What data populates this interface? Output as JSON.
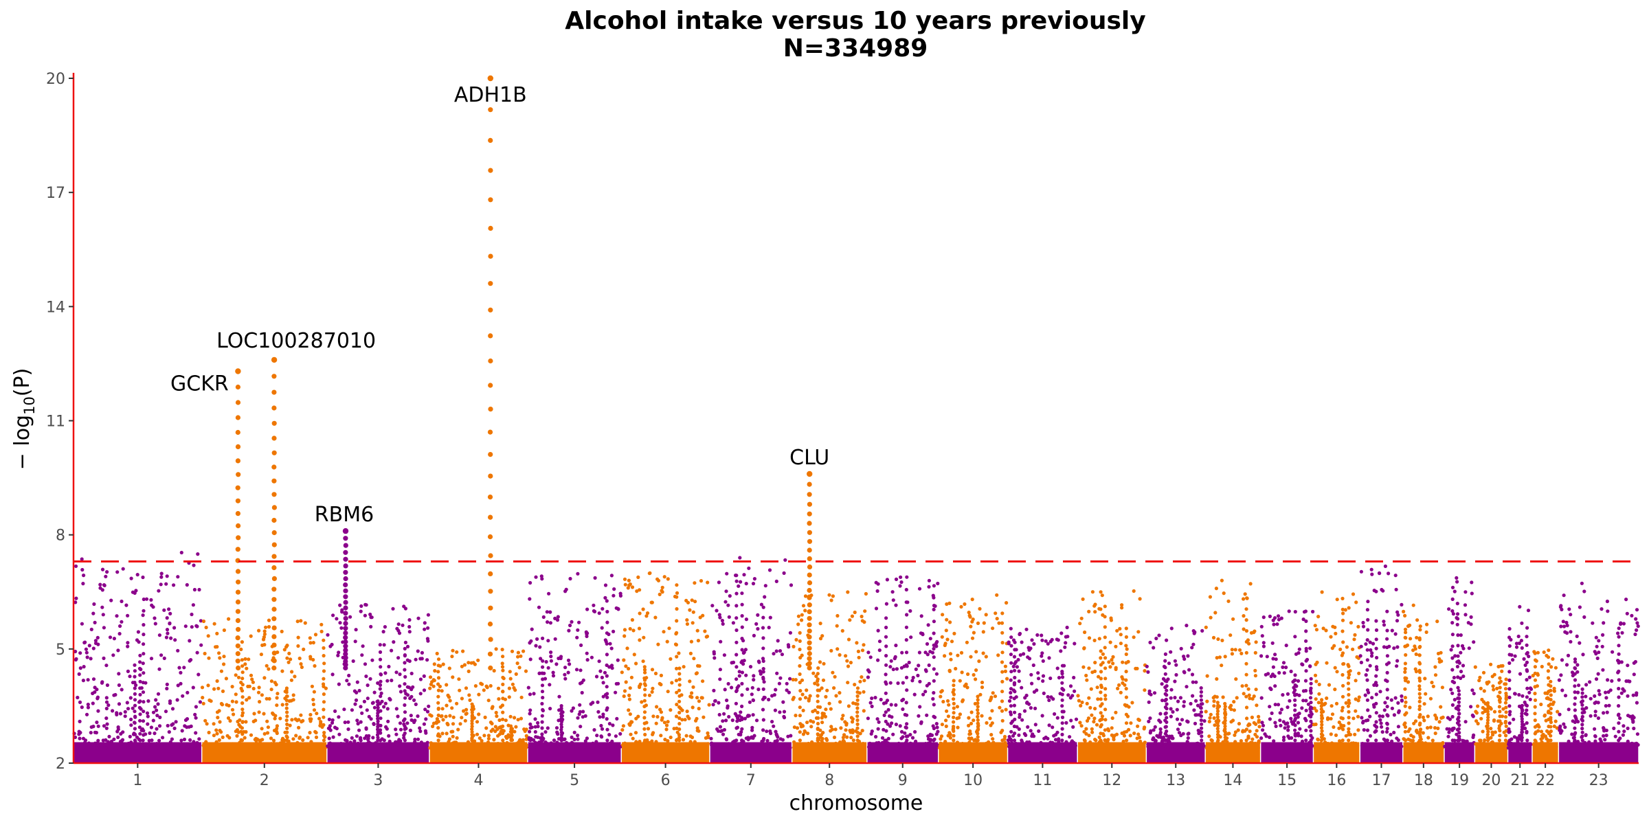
{
  "chart_data": {
    "type": "scatter",
    "title": "Alcohol intake versus 10 years previously",
    "subtitle": "N=334989",
    "xlabel": "chromosome",
    "ylabel_main": "− log",
    "ylabel_sub": "10",
    "ylabel_tail": "(P)",
    "ylim": [
      2,
      20
    ],
    "yticks": [
      "2",
      "5",
      "8",
      "11",
      "14",
      "17",
      "20"
    ],
    "significance_threshold": 7.3,
    "colors": {
      "purple": "#8B008B",
      "orange": "#EE7600",
      "threshold": "#EE1111",
      "axis": "#EE1111"
    },
    "chromosomes": [
      {
        "label": "1",
        "start": 0,
        "end": 248,
        "color": "purple",
        "max": 7.6
      },
      {
        "label": "2",
        "start": 248,
        "end": 490,
        "color": "orange",
        "max": 5.8
      },
      {
        "label": "3",
        "start": 490,
        "end": 688,
        "color": "purple",
        "max": 6.2
      },
      {
        "label": "4",
        "start": 688,
        "end": 878,
        "color": "orange",
        "max": 5.0
      },
      {
        "label": "5",
        "start": 878,
        "end": 1059,
        "color": "purple",
        "max": 7.0
      },
      {
        "label": "6",
        "start": 1059,
        "end": 1230,
        "color": "orange",
        "max": 7.0
      },
      {
        "label": "7",
        "start": 1230,
        "end": 1389,
        "color": "purple",
        "max": 7.4
      },
      {
        "label": "8",
        "start": 1389,
        "end": 1534,
        "color": "orange",
        "max": 6.5
      },
      {
        "label": "9",
        "start": 1534,
        "end": 1672,
        "color": "purple",
        "max": 7.0
      },
      {
        "label": "10",
        "start": 1672,
        "end": 1806,
        "color": "orange",
        "max": 6.5
      },
      {
        "label": "11",
        "start": 1806,
        "end": 1941,
        "color": "purple",
        "max": 5.6
      },
      {
        "label": "12",
        "start": 1941,
        "end": 2074,
        "color": "orange",
        "max": 6.6
      },
      {
        "label": "13",
        "start": 2074,
        "end": 2188,
        "color": "purple",
        "max": 5.7
      },
      {
        "label": "14",
        "start": 2188,
        "end": 2295,
        "color": "orange",
        "max": 6.8
      },
      {
        "label": "15",
        "start": 2295,
        "end": 2397,
        "color": "purple",
        "max": 6.1
      },
      {
        "label": "16",
        "start": 2397,
        "end": 2487,
        "color": "orange",
        "max": 6.5
      },
      {
        "label": "17",
        "start": 2487,
        "end": 2570,
        "color": "purple",
        "max": 7.2
      },
      {
        "label": "18",
        "start": 2570,
        "end": 2650,
        "color": "orange",
        "max": 6.2
      },
      {
        "label": "19",
        "start": 2650,
        "end": 2709,
        "color": "purple",
        "max": 7.0
      },
      {
        "label": "20",
        "start": 2709,
        "end": 2773,
        "color": "orange",
        "max": 4.6
      },
      {
        "label": "21",
        "start": 2773,
        "end": 2820,
        "color": "purple",
        "max": 6.3
      },
      {
        "label": "22",
        "start": 2820,
        "end": 2871,
        "color": "orange",
        "max": 5.0
      },
      {
        "label": "23",
        "start": 2871,
        "end": 3026,
        "color": "purple",
        "max": 6.9
      }
    ],
    "peaks": [
      {
        "x": 318,
        "y": 12.3,
        "label": "GCKR"
      },
      {
        "x": 388,
        "y": 12.6,
        "label": "LOC100287010"
      },
      {
        "x": 526,
        "y": 8.1,
        "label": "RBM6"
      },
      {
        "x": 806,
        "y": 20.0,
        "label": "ADH1B"
      },
      {
        "x": 1423,
        "y": 9.6,
        "label": "CLU"
      }
    ]
  }
}
